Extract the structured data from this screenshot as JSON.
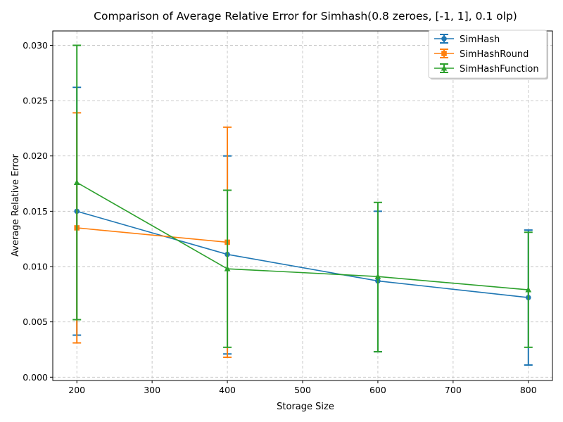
{
  "chart_data": {
    "type": "line",
    "title": "Comparison of Average Relative Error for Simhash(0.8 zeroes, [-1, 1], 0.1 olp)",
    "xlabel": "Storage Size",
    "ylabel": "Average Relative Error",
    "xlim": [
      168,
      832
    ],
    "ylim": [
      -0.0003,
      0.0313
    ],
    "xticks": [
      "200",
      "300",
      "400",
      "500",
      "600",
      "700",
      "800"
    ],
    "yticks": [
      "0.000",
      "0.005",
      "0.010",
      "0.015",
      "0.020",
      "0.025",
      "0.030"
    ],
    "grid": true,
    "legend_position": "top-right",
    "series": [
      {
        "name": "SimHash",
        "color": "#1f77b4",
        "marker": "circle",
        "x": [
          200,
          400,
          600,
          800
        ],
        "y": [
          0.015,
          0.0111,
          0.0087,
          0.0072
        ],
        "err_low": [
          0.0038,
          0.0021,
          0.0023,
          0.0011
        ],
        "err_high": [
          0.0262,
          0.02,
          0.015,
          0.0133
        ]
      },
      {
        "name": "SimHashRound",
        "color": "#ff7f0e",
        "marker": "square",
        "x": [
          200,
          400
        ],
        "y": [
          0.0135,
          0.0122
        ],
        "err_low": [
          0.0031,
          0.0018
        ],
        "err_high": [
          0.0239,
          0.0226
        ]
      },
      {
        "name": "SimHashFunction",
        "color": "#2ca02c",
        "marker": "triangle",
        "x": [
          200,
          400,
          600,
          800
        ],
        "y": [
          0.0176,
          0.0098,
          0.0091,
          0.0079
        ],
        "err_low": [
          0.0052,
          0.0027,
          0.0023,
          0.0027
        ],
        "err_high": [
          0.03,
          0.0169,
          0.0158,
          0.0131
        ]
      }
    ]
  }
}
